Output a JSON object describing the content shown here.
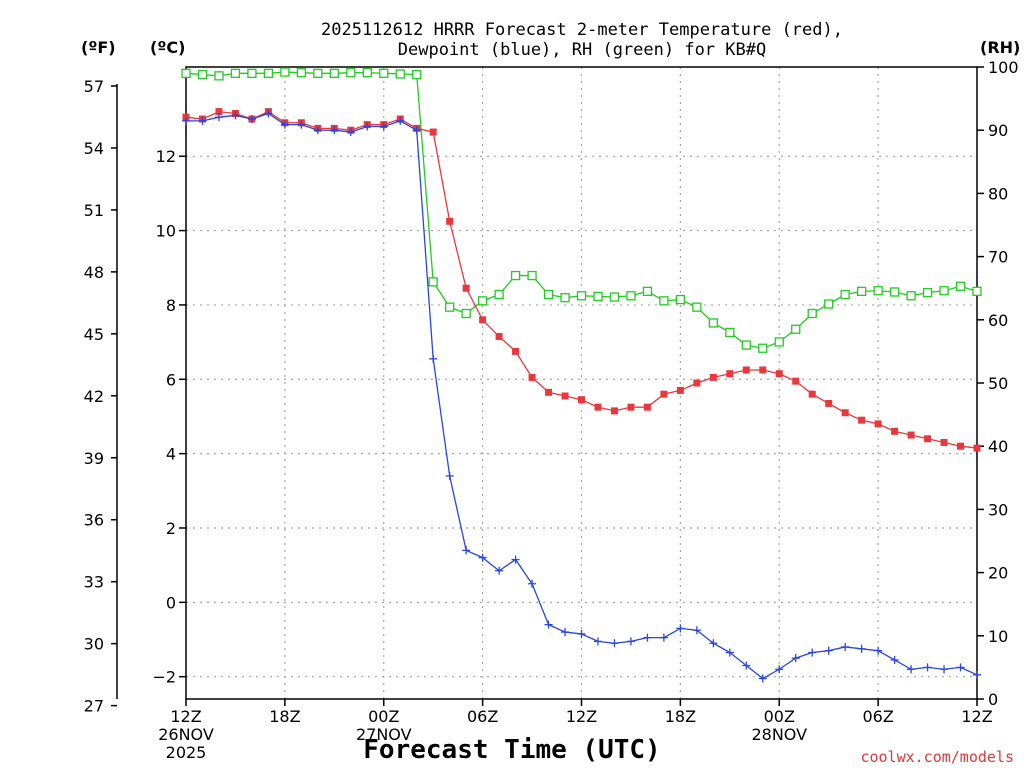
{
  "chart_data": {
    "type": "line",
    "title": "2025112612 HRRR Forecast 2-meter Temperature (red),",
    "subtitle": "Dewpoint (blue), RH (green) for KB#Q",
    "xlabel": "Forecast Time (UTC)",
    "credit": "coolwx.com/models",
    "unit_f": "(ºF)",
    "unit_c": "(ºC)",
    "unit_rh": "(RH)",
    "x_hours": [
      0,
      1,
      2,
      3,
      4,
      5,
      6,
      7,
      8,
      9,
      10,
      11,
      12,
      13,
      14,
      15,
      16,
      17,
      18,
      19,
      20,
      21,
      22,
      23,
      24,
      25,
      26,
      27,
      28,
      29,
      30,
      31,
      32,
      33,
      34,
      35,
      36,
      37,
      38,
      39,
      40,
      41,
      42,
      43,
      44,
      45,
      46,
      47,
      48
    ],
    "xlim": [
      0,
      48
    ],
    "ylim_c": [
      -2.6,
      14.4
    ],
    "ylim_rh": [
      0,
      100
    ],
    "x_ticks": [
      {
        "hour": 0,
        "label": "12Z",
        "date": "26NOV",
        "year": "2025"
      },
      {
        "hour": 6,
        "label": "18Z",
        "date": "",
        "year": ""
      },
      {
        "hour": 12,
        "label": "00Z",
        "date": "27NOV",
        "year": ""
      },
      {
        "hour": 18,
        "label": "06Z",
        "date": "",
        "year": ""
      },
      {
        "hour": 24,
        "label": "12Z",
        "date": "",
        "year": ""
      },
      {
        "hour": 30,
        "label": "18Z",
        "date": "",
        "year": ""
      },
      {
        "hour": 36,
        "label": "00Z",
        "date": "28NOV",
        "year": ""
      },
      {
        "hour": 42,
        "label": "06Z",
        "date": "",
        "year": ""
      },
      {
        "hour": 48,
        "label": "12Z",
        "date": "",
        "year": ""
      }
    ],
    "f_ticks": [
      "57",
      "54",
      "51",
      "48",
      "45",
      "42",
      "39",
      "36",
      "33",
      "30",
      "27"
    ],
    "f_values": [
      57,
      54,
      51,
      48,
      45,
      42,
      39,
      36,
      33,
      30,
      27
    ],
    "c_ticks": [
      "12",
      "10",
      "8",
      "6",
      "4",
      "2",
      "0",
      "−2"
    ],
    "c_values": [
      12,
      10,
      8,
      6,
      4,
      2,
      0,
      -2
    ],
    "rh_ticks": [
      "100",
      "90",
      "80",
      "70",
      "60",
      "50",
      "40",
      "30",
      "20",
      "10",
      "0"
    ],
    "rh_values": [
      100,
      90,
      80,
      70,
      60,
      50,
      40,
      30,
      20,
      10,
      0
    ],
    "series": [
      {
        "name": "Temperature (red)",
        "color": "#e8383d",
        "marker": "square-filled",
        "values": [
          13.05,
          13.0,
          13.2,
          13.15,
          13.0,
          13.2,
          12.9,
          12.9,
          12.75,
          12.75,
          12.7,
          12.85,
          12.85,
          13.0,
          12.75,
          12.65,
          10.25,
          8.45,
          7.6,
          7.15,
          6.75,
          6.05,
          5.65,
          5.55,
          5.45,
          5.25,
          5.15,
          5.25,
          5.25,
          5.6,
          5.7,
          5.9,
          6.05,
          6.15,
          6.25,
          6.25,
          6.15,
          5.95,
          5.6,
          5.35,
          5.1,
          4.9,
          4.8,
          4.6,
          4.5,
          4.4,
          4.3,
          4.2,
          4.15
        ]
      },
      {
        "name": "Dewpoint (blue)",
        "color": "#2a45e0",
        "marker": "plus",
        "values": [
          12.95,
          12.95,
          13.05,
          13.1,
          13.0,
          13.15,
          12.85,
          12.85,
          12.7,
          12.7,
          12.65,
          12.8,
          12.8,
          12.95,
          12.7,
          6.55,
          3.4,
          1.4,
          1.2,
          0.85,
          1.15,
          0.5,
          -0.6,
          -0.8,
          -0.85,
          -1.05,
          -1.1,
          -1.05,
          -0.95,
          -0.95,
          -0.7,
          -0.75,
          -1.1,
          -1.35,
          -1.7,
          -2.05,
          -1.8,
          -1.5,
          -1.35,
          -1.3,
          -1.2,
          -1.25,
          -1.3,
          -1.55,
          -1.8,
          -1.75,
          -1.8,
          -1.75,
          -1.95
        ]
      },
      {
        "name": "RH (green)",
        "color": "#22cc22",
        "marker": "square-open",
        "values": [
          99,
          98.8,
          98.6,
          99,
          99,
          99,
          99.2,
          99.1,
          99,
          99,
          99.1,
          99.1,
          99,
          98.9,
          98.8,
          66,
          62,
          61,
          63,
          64,
          67,
          67,
          64,
          63.5,
          63.8,
          63.7,
          63.6,
          63.8,
          64.5,
          63,
          63.2,
          62,
          59.5,
          58,
          56,
          55.5,
          56.5,
          58.5,
          61,
          62.5,
          64,
          64.5,
          64.6,
          64.4,
          63.8,
          64.3,
          64.6,
          65.3,
          64.5
        ]
      }
    ]
  }
}
